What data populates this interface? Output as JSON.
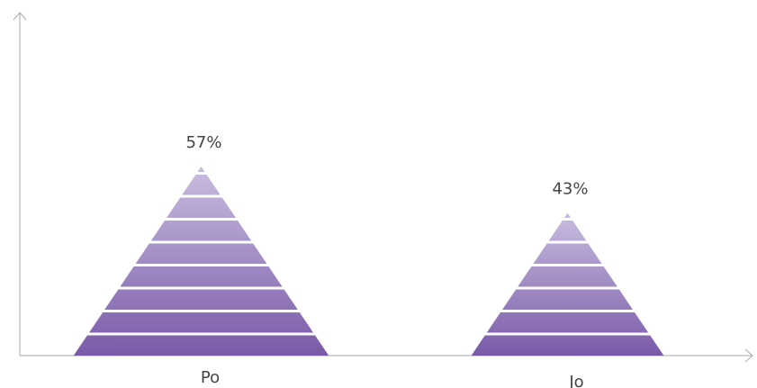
{
  "chart_data": {
    "type": "pictorial-bar",
    "categories": [
      "Po",
      "Jo"
    ],
    "values": [
      57,
      43
    ],
    "value_labels": [
      "57%",
      "43%"
    ],
    "color": "#7a5aa8",
    "color_top": "#c9bde0"
  }
}
